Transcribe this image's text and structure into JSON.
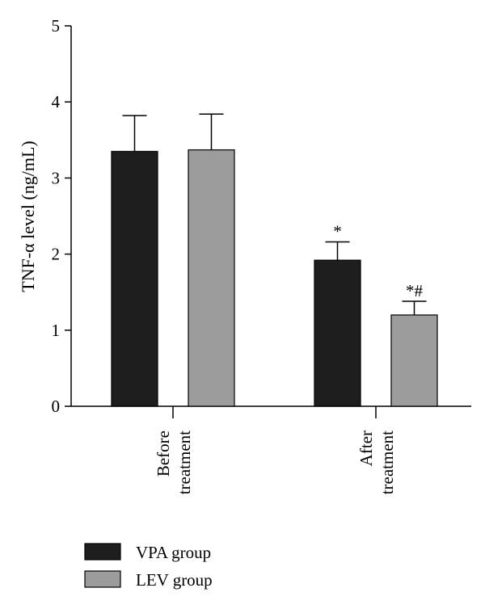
{
  "chart_data": {
    "type": "bar",
    "categories": [
      [
        "Before",
        "treatment"
      ],
      [
        "After",
        "treatment"
      ]
    ],
    "series": [
      {
        "name": "VPA group",
        "color": "#1e1e1e",
        "values": [
          3.35,
          1.92
        ],
        "errors": [
          0.47,
          0.24
        ],
        "annotations": [
          "",
          "*"
        ]
      },
      {
        "name": "LEV group",
        "color": "#9c9c9c",
        "values": [
          3.37,
          1.2
        ],
        "errors": [
          0.47,
          0.18
        ],
        "annotations": [
          "",
          "*#"
        ]
      }
    ],
    "ylabel": "TNF-α level (ng/mL)",
    "ylim": [
      0,
      5
    ],
    "yticks": [
      "0",
      "1",
      "2",
      "3",
      "4",
      "5"
    ],
    "legend_position": "bottom-left",
    "grid": false
  }
}
